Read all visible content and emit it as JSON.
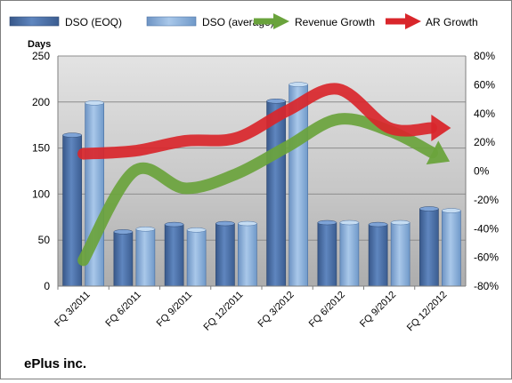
{
  "company_label": "ePlus inc.",
  "chart_data": {
    "type": "bar",
    "categories": [
      "FQ 3/2011",
      "FQ 6/2011",
      "FQ 9/2011",
      "FQ 12/2011",
      "FQ 3/2012",
      "FQ 6/2012",
      "FQ 9/2012",
      "FQ 12/2012"
    ],
    "series": [
      {
        "name": "DSO (EOQ)",
        "type": "bar",
        "axis": "left",
        "color": "#4a6fa5",
        "values": [
          164,
          59,
          67,
          68,
          201,
          69,
          67,
          84
        ]
      },
      {
        "name": "DSO (average)",
        "type": "bar",
        "axis": "left",
        "color": "#8fb3dc",
        "values": [
          199,
          62,
          61,
          68,
          219,
          69,
          69,
          82
        ]
      },
      {
        "name": "Revenue Growth",
        "type": "line",
        "axis": "right",
        "color": "#6aa33c",
        "values": [
          -62,
          0,
          -12,
          -2,
          17,
          36,
          28,
          10
        ]
      },
      {
        "name": "AR Growth",
        "type": "line",
        "axis": "right",
        "color": "#d9262b",
        "values": [
          12,
          14,
          21,
          23,
          42,
          57,
          30,
          30
        ]
      }
    ],
    "ylabel": "Days",
    "y_ticks": [
      "0",
      "50",
      "100",
      "150",
      "200",
      "250"
    ],
    "y_right_ticks": [
      "-80%",
      "-60%",
      "-40%",
      "-20%",
      "0%",
      "20%",
      "40%",
      "60%",
      "80%"
    ],
    "ylim": [
      0,
      250
    ],
    "ylim_right": [
      -80,
      80
    ],
    "grid": true,
    "legend_position": "top"
  }
}
